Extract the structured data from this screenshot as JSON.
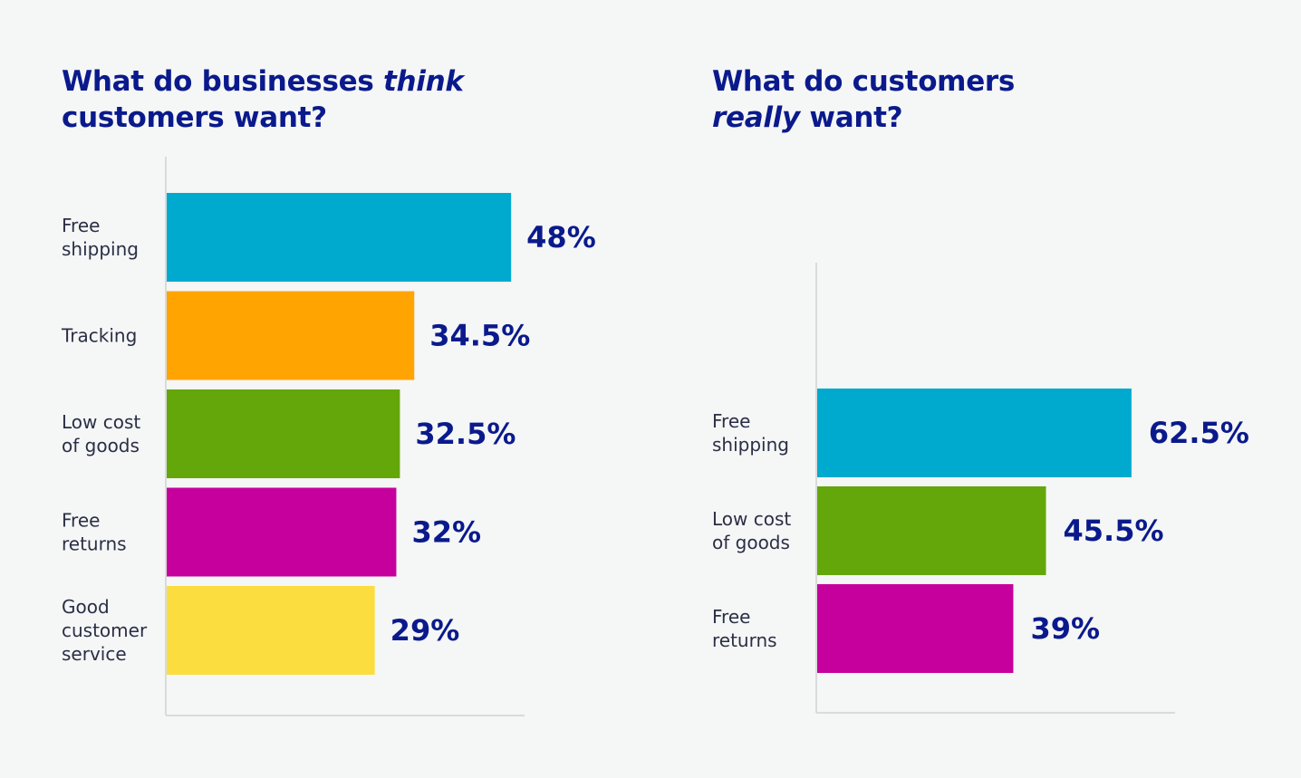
{
  "chart_data": [
    {
      "type": "bar",
      "orientation": "horizontal",
      "title": "What do businesses think customers want?",
      "title_parts": [
        {
          "text": "What do businesses ",
          "italic": false
        },
        {
          "text": "think",
          "italic": true
        },
        {
          "text": " customers want?",
          "italic": false
        }
      ],
      "categories": [
        [
          "Free",
          "shipping"
        ],
        [
          "Tracking"
        ],
        [
          "Low cost",
          "of goods"
        ],
        [
          "Free",
          "returns"
        ],
        [
          "Good",
          "customer",
          "service"
        ]
      ],
      "values": [
        48,
        34.5,
        32.5,
        32,
        29
      ],
      "value_labels": [
        "48%",
        "34.5%",
        "32.5%",
        "32%",
        "29%"
      ],
      "colors": [
        "#00a9ce",
        "#ffa400",
        "#64a70b",
        "#c6009d",
        "#fbdd40"
      ],
      "xlabel": "",
      "ylabel": "",
      "xlim": [
        0,
        50
      ],
      "grid": false,
      "legend": "none"
    },
    {
      "type": "bar",
      "orientation": "horizontal",
      "title": "What do customers really want?",
      "title_parts": [
        {
          "text": "What do customers ",
          "italic": false
        },
        {
          "text": "really",
          "italic": true
        },
        {
          "text": " want?",
          "italic": false
        }
      ],
      "categories": [
        [
          "Free",
          "shipping"
        ],
        [
          "Low cost",
          "of goods"
        ],
        [
          "Free",
          "returns"
        ]
      ],
      "values": [
        62.5,
        45.5,
        39
      ],
      "value_labels": [
        "62.5%",
        "45.5%",
        "39%"
      ],
      "colors": [
        "#00a9ce",
        "#64a70b",
        "#c6009d"
      ],
      "xlabel": "",
      "ylabel": "",
      "xlim": [
        0,
        72
      ],
      "grid": false,
      "legend": "none"
    }
  ],
  "titles": {
    "left": {
      "line1_a": "What do businesses ",
      "line1_em": "think",
      "line2": "customers want?"
    },
    "right": {
      "line1": "What do customers",
      "line2_em": "really",
      "line2_b": " want?"
    }
  }
}
